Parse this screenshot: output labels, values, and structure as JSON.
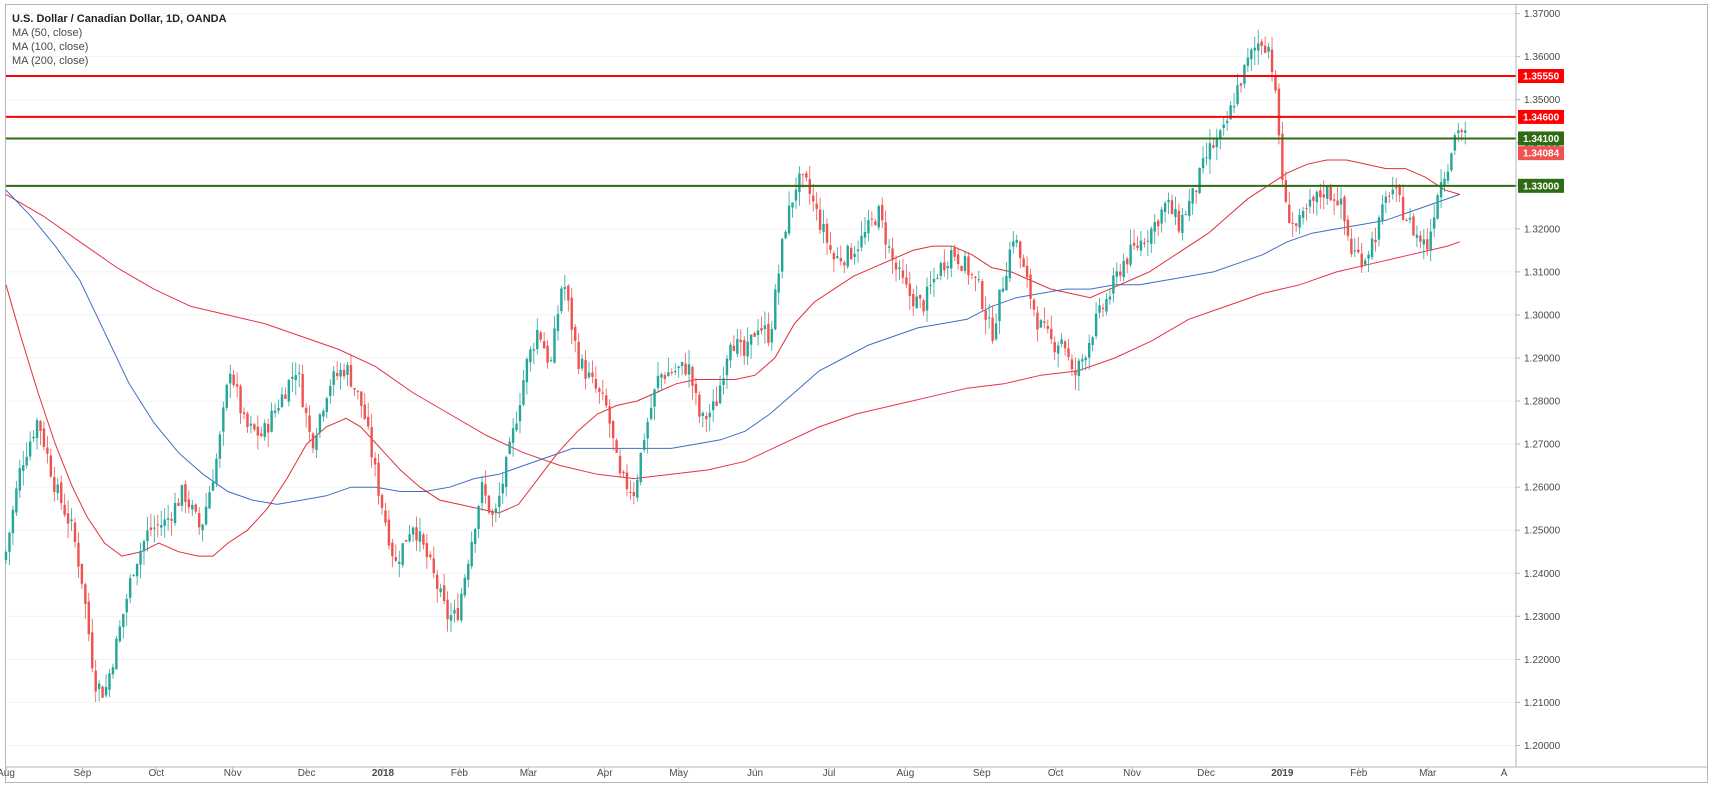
{
  "legend": {
    "title": "U.S. Dollar / Canadian Dollar, 1D, OANDA",
    "ma50": "MA (50, close)",
    "ma100": "MA (100, close)",
    "ma200": "MA (200, close)"
  },
  "colors": {
    "up": "#26a69a",
    "down": "#ef5350",
    "ma50": "#e0303a",
    "ma100": "#3f6fc4",
    "ma200": "#e8304a",
    "resistance": "#ff0000",
    "support": "#2e6b12",
    "last_price": "#ef5350"
  },
  "chart_data": {
    "type": "candlestick",
    "title": "U.S. Dollar / Canadian Dollar, 1D, OANDA",
    "ylim": [
      1.195,
      1.372
    ],
    "y_ticks": [
      "1.37000",
      "1.36000",
      "1.35000",
      "1.34000",
      "1.33000",
      "1.32000",
      "1.31000",
      "1.30000",
      "1.29000",
      "1.28000",
      "1.27000",
      "1.26000",
      "1.25000",
      "1.24000",
      "1.23000",
      "1.22000",
      "1.21000",
      "1.20000"
    ],
    "x_ticks": [
      {
        "label": "Aug",
        "day": 0
      },
      {
        "label": "Sep",
        "day": 31
      },
      {
        "label": "Oct",
        "day": 61
      },
      {
        "label": "Nov",
        "day": 92
      },
      {
        "label": "Dec",
        "day": 122
      },
      {
        "label": "2018",
        "day": 153,
        "bold": true
      },
      {
        "label": "Feb",
        "day": 184
      },
      {
        "label": "Mar",
        "day": 212
      },
      {
        "label": "Apr",
        "day": 243
      },
      {
        "label": "May",
        "day": 273
      },
      {
        "label": "Jun",
        "day": 304
      },
      {
        "label": "Jul",
        "day": 334
      },
      {
        "label": "Aug",
        "day": 365
      },
      {
        "label": "Sep",
        "day": 396
      },
      {
        "label": "Oct",
        "day": 426
      },
      {
        "label": "Nov",
        "day": 457
      },
      {
        "label": "Dec",
        "day": 487
      },
      {
        "label": "2019",
        "day": 518,
        "bold": true
      },
      {
        "label": "Feb",
        "day": 549
      },
      {
        "label": "Mar",
        "day": 577
      },
      {
        "label": "A",
        "day": 608
      }
    ],
    "x_range_days": [
      0,
      612
    ],
    "close_path": [
      [
        0,
        1.245
      ],
      [
        6,
        1.265
      ],
      [
        13,
        1.276
      ],
      [
        20,
        1.26
      ],
      [
        27,
        1.25
      ],
      [
        31,
        1.238
      ],
      [
        36,
        1.215
      ],
      [
        40,
        1.212
      ],
      [
        45,
        1.224
      ],
      [
        52,
        1.242
      ],
      [
        58,
        1.25
      ],
      [
        65,
        1.252
      ],
      [
        72,
        1.259
      ],
      [
        79,
        1.25
      ],
      [
        86,
        1.268
      ],
      [
        91,
        1.288
      ],
      [
        97,
        1.274
      ],
      [
        104,
        1.272
      ],
      [
        111,
        1.28
      ],
      [
        118,
        1.288
      ],
      [
        124,
        1.27
      ],
      [
        131,
        1.284
      ],
      [
        138,
        1.288
      ],
      [
        145,
        1.278
      ],
      [
        151,
        1.26
      ],
      [
        158,
        1.242
      ],
      [
        165,
        1.252
      ],
      [
        172,
        1.242
      ],
      [
        179,
        1.23
      ],
      [
        183,
        1.23
      ],
      [
        188,
        1.245
      ],
      [
        193,
        1.26
      ],
      [
        198,
        1.252
      ],
      [
        205,
        1.27
      ],
      [
        211,
        1.288
      ],
      [
        216,
        1.297
      ],
      [
        221,
        1.288
      ],
      [
        226,
        1.309
      ],
      [
        232,
        1.29
      ],
      [
        238,
        1.284
      ],
      [
        244,
        1.278
      ],
      [
        249,
        1.262
      ],
      [
        255,
        1.259
      ],
      [
        259,
        1.272
      ],
      [
        265,
        1.286
      ],
      [
        271,
        1.287
      ],
      [
        277,
        1.288
      ],
      [
        282,
        1.275
      ],
      [
        288,
        1.279
      ],
      [
        294,
        1.295
      ],
      [
        300,
        1.29
      ],
      [
        305,
        1.298
      ],
      [
        310,
        1.295
      ],
      [
        316,
        1.32
      ],
      [
        321,
        1.331
      ],
      [
        325,
        1.33
      ],
      [
        330,
        1.322
      ],
      [
        336,
        1.313
      ],
      [
        342,
        1.314
      ],
      [
        348,
        1.318
      ],
      [
        354,
        1.324
      ],
      [
        360,
        1.312
      ],
      [
        366,
        1.305
      ],
      [
        372,
        1.302
      ],
      [
        378,
        1.31
      ],
      [
        384,
        1.315
      ],
      [
        390,
        1.311
      ],
      [
        395,
        1.306
      ],
      [
        400,
        1.295
      ],
      [
        404,
        1.306
      ],
      [
        409,
        1.319
      ],
      [
        414,
        1.308
      ],
      [
        419,
        1.298
      ],
      [
        425,
        1.293
      ],
      [
        429,
        1.295
      ],
      [
        433,
        1.285
      ],
      [
        437,
        1.29
      ],
      [
        442,
        1.298
      ],
      [
        448,
        1.305
      ],
      [
        453,
        1.312
      ],
      [
        459,
        1.316
      ],
      [
        465,
        1.32
      ],
      [
        471,
        1.326
      ],
      [
        476,
        1.321
      ],
      [
        482,
        1.328
      ],
      [
        488,
        1.338
      ],
      [
        494,
        1.342
      ],
      [
        500,
        1.353
      ],
      [
        505,
        1.36
      ],
      [
        509,
        1.364
      ],
      [
        513,
        1.362
      ],
      [
        516,
        1.346
      ],
      [
        519,
        1.325
      ],
      [
        524,
        1.32
      ],
      [
        529,
        1.325
      ],
      [
        535,
        1.329
      ],
      [
        541,
        1.327
      ],
      [
        546,
        1.315
      ],
      [
        551,
        1.313
      ],
      [
        556,
        1.319
      ],
      [
        562,
        1.33
      ],
      [
        568,
        1.323
      ],
      [
        573,
        1.318
      ],
      [
        577,
        1.316
      ],
      [
        581,
        1.329
      ],
      [
        585,
        1.335
      ],
      [
        589,
        1.344
      ],
      [
        593,
        1.3408
      ]
    ],
    "ma50": [
      [
        0,
        1.307
      ],
      [
        6,
        1.295
      ],
      [
        13,
        1.282
      ],
      [
        20,
        1.27
      ],
      [
        27,
        1.26
      ],
      [
        33,
        1.253
      ],
      [
        40,
        1.247
      ],
      [
        47,
        1.244
      ],
      [
        55,
        1.245
      ],
      [
        62,
        1.247
      ],
      [
        70,
        1.245
      ],
      [
        78,
        1.244
      ],
      [
        84,
        1.244
      ],
      [
        90,
        1.247
      ],
      [
        98,
        1.25
      ],
      [
        106,
        1.255
      ],
      [
        114,
        1.262
      ],
      [
        122,
        1.27
      ],
      [
        130,
        1.274
      ],
      [
        138,
        1.276
      ],
      [
        144,
        1.274
      ],
      [
        152,
        1.269
      ],
      [
        160,
        1.264
      ],
      [
        168,
        1.26
      ],
      [
        176,
        1.257
      ],
      [
        184,
        1.256
      ],
      [
        192,
        1.255
      ],
      [
        200,
        1.254
      ],
      [
        208,
        1.256
      ],
      [
        216,
        1.262
      ],
      [
        224,
        1.268
      ],
      [
        232,
        1.273
      ],
      [
        240,
        1.277
      ],
      [
        248,
        1.279
      ],
      [
        256,
        1.28
      ],
      [
        264,
        1.282
      ],
      [
        272,
        1.284
      ],
      [
        280,
        1.285
      ],
      [
        288,
        1.285
      ],
      [
        296,
        1.285
      ],
      [
        304,
        1.286
      ],
      [
        312,
        1.29
      ],
      [
        320,
        1.298
      ],
      [
        328,
        1.303
      ],
      [
        336,
        1.306
      ],
      [
        344,
        1.309
      ],
      [
        352,
        1.311
      ],
      [
        360,
        1.313
      ],
      [
        368,
        1.315
      ],
      [
        376,
        1.316
      ],
      [
        384,
        1.316
      ],
      [
        392,
        1.314
      ],
      [
        400,
        1.311
      ],
      [
        408,
        1.31
      ],
      [
        416,
        1.308
      ],
      [
        424,
        1.306
      ],
      [
        432,
        1.305
      ],
      [
        440,
        1.304
      ],
      [
        448,
        1.306
      ],
      [
        456,
        1.308
      ],
      [
        464,
        1.31
      ],
      [
        472,
        1.313
      ],
      [
        480,
        1.316
      ],
      [
        488,
        1.319
      ],
      [
        496,
        1.323
      ],
      [
        504,
        1.327
      ],
      [
        512,
        1.33
      ],
      [
        520,
        1.333
      ],
      [
        528,
        1.335
      ],
      [
        536,
        1.336
      ],
      [
        544,
        1.336
      ],
      [
        552,
        1.335
      ],
      [
        560,
        1.334
      ],
      [
        568,
        1.334
      ],
      [
        576,
        1.332
      ],
      [
        584,
        1.329
      ],
      [
        590,
        1.328
      ]
    ],
    "ma100": [
      [
        0,
        1.329
      ],
      [
        10,
        1.323
      ],
      [
        20,
        1.316
      ],
      [
        30,
        1.308
      ],
      [
        40,
        1.296
      ],
      [
        50,
        1.284
      ],
      [
        60,
        1.275
      ],
      [
        70,
        1.268
      ],
      [
        80,
        1.263
      ],
      [
        90,
        1.259
      ],
      [
        100,
        1.257
      ],
      [
        110,
        1.256
      ],
      [
        120,
        1.257
      ],
      [
        130,
        1.258
      ],
      [
        140,
        1.26
      ],
      [
        150,
        1.26
      ],
      [
        160,
        1.259
      ],
      [
        170,
        1.259
      ],
      [
        180,
        1.26
      ],
      [
        190,
        1.262
      ],
      [
        200,
        1.263
      ],
      [
        210,
        1.265
      ],
      [
        220,
        1.267
      ],
      [
        230,
        1.269
      ],
      [
        240,
        1.269
      ],
      [
        250,
        1.269
      ],
      [
        260,
        1.269
      ],
      [
        270,
        1.269
      ],
      [
        280,
        1.27
      ],
      [
        290,
        1.271
      ],
      [
        300,
        1.273
      ],
      [
        310,
        1.277
      ],
      [
        320,
        1.282
      ],
      [
        330,
        1.287
      ],
      [
        340,
        1.29
      ],
      [
        350,
        1.293
      ],
      [
        360,
        1.295
      ],
      [
        370,
        1.297
      ],
      [
        380,
        1.298
      ],
      [
        390,
        1.299
      ],
      [
        400,
        1.302
      ],
      [
        410,
        1.304
      ],
      [
        420,
        1.305
      ],
      [
        430,
        1.306
      ],
      [
        440,
        1.306
      ],
      [
        450,
        1.307
      ],
      [
        460,
        1.307
      ],
      [
        470,
        1.308
      ],
      [
        480,
        1.309
      ],
      [
        490,
        1.31
      ],
      [
        500,
        1.312
      ],
      [
        510,
        1.314
      ],
      [
        520,
        1.317
      ],
      [
        530,
        1.319
      ],
      [
        540,
        1.32
      ],
      [
        550,
        1.321
      ],
      [
        560,
        1.322
      ],
      [
        570,
        1.324
      ],
      [
        580,
        1.326
      ],
      [
        590,
        1.328
      ]
    ],
    "ma200": [
      [
        0,
        1.328
      ],
      [
        15,
        1.323
      ],
      [
        30,
        1.317
      ],
      [
        45,
        1.311
      ],
      [
        60,
        1.306
      ],
      [
        75,
        1.302
      ],
      [
        90,
        1.3
      ],
      [
        105,
        1.298
      ],
      [
        120,
        1.295
      ],
      [
        135,
        1.292
      ],
      [
        150,
        1.288
      ],
      [
        165,
        1.282
      ],
      [
        180,
        1.277
      ],
      [
        195,
        1.272
      ],
      [
        210,
        1.268
      ],
      [
        225,
        1.265
      ],
      [
        240,
        1.263
      ],
      [
        255,
        1.262
      ],
      [
        270,
        1.263
      ],
      [
        285,
        1.264
      ],
      [
        300,
        1.266
      ],
      [
        315,
        1.27
      ],
      [
        330,
        1.274
      ],
      [
        345,
        1.277
      ],
      [
        360,
        1.279
      ],
      [
        375,
        1.281
      ],
      [
        390,
        1.283
      ],
      [
        405,
        1.284
      ],
      [
        420,
        1.286
      ],
      [
        435,
        1.287
      ],
      [
        450,
        1.29
      ],
      [
        465,
        1.294
      ],
      [
        480,
        1.299
      ],
      [
        495,
        1.302
      ],
      [
        510,
        1.305
      ],
      [
        525,
        1.307
      ],
      [
        540,
        1.31
      ],
      [
        555,
        1.312
      ],
      [
        570,
        1.314
      ],
      [
        585,
        1.316
      ],
      [
        590,
        1.317
      ]
    ],
    "horizontal_levels": [
      {
        "value": 1.3555,
        "label": "1.35550",
        "kind": "resistance"
      },
      {
        "value": 1.346,
        "label": "1.34600",
        "kind": "resistance"
      },
      {
        "value": 1.341,
        "label": "1.34100",
        "kind": "support"
      },
      {
        "value": 1.33,
        "label": "1.33000",
        "kind": "support"
      }
    ],
    "last_price": {
      "value": 1.34084,
      "label": "1.34084"
    }
  }
}
